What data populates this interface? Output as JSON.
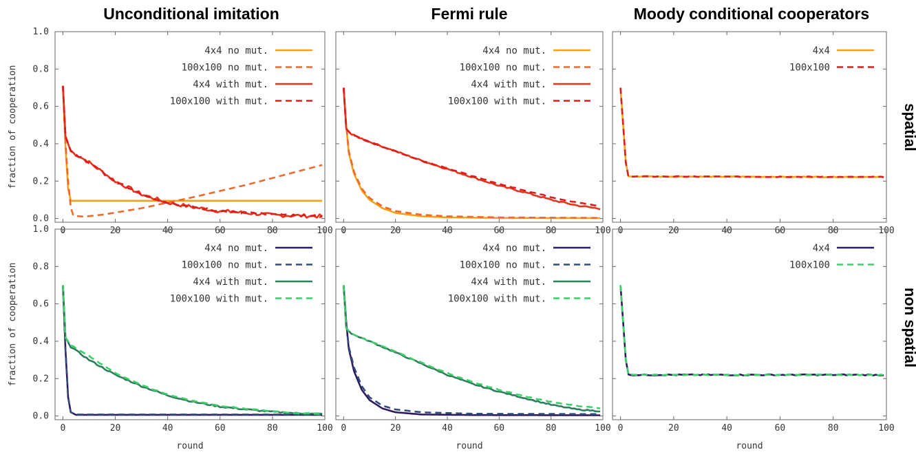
{
  "columns": [
    "Unconditional imitation",
    "Fermi rule",
    "Moody conditional cooperators"
  ],
  "rows": [
    "spatial",
    "non spatial"
  ],
  "chart_data": [
    {
      "type": "line",
      "column": "Unconditional imitation",
      "row": "spatial",
      "xlabel": "",
      "ylabel": "fraction of cooperation",
      "xlim": [
        -3,
        100
      ],
      "ylim": [
        -0.02,
        1.0
      ],
      "xticks": [
        "0",
        "20",
        "40",
        "60",
        "80",
        "100"
      ],
      "yticks": [
        "0.0",
        "0.2",
        "0.4",
        "0.6",
        "0.8",
        "1.0"
      ],
      "legend_position": "top-right",
      "series": [
        {
          "name": "4x4 no mut.",
          "color": "#f5a01a",
          "dash": false,
          "noise": 0,
          "points": [
            [
              0,
              0.71
            ],
            [
              1,
              0.38
            ],
            [
              2,
              0.16
            ],
            [
              3,
              0.095
            ],
            [
              100,
              0.095
            ]
          ]
        },
        {
          "name": "100x100 no mut.",
          "color": "#ee6a2c",
          "dash": true,
          "noise": 0,
          "points": [
            [
              0,
              0.71
            ],
            [
              1,
              0.4
            ],
            [
              2,
              0.2
            ],
            [
              3,
              0.06
            ],
            [
              4,
              0.015
            ],
            [
              8,
              0.01
            ],
            [
              15,
              0.02
            ],
            [
              30,
              0.055
            ],
            [
              50,
              0.115
            ],
            [
              70,
              0.18
            ],
            [
              85,
              0.235
            ],
            [
              100,
              0.29
            ]
          ]
        },
        {
          "name": "4x4 with mut.",
          "color": "#e8341c",
          "dash": false,
          "noise": 0.01,
          "points": [
            [
              0,
              0.71
            ],
            [
              1,
              0.44
            ],
            [
              3,
              0.36
            ],
            [
              10,
              0.3
            ],
            [
              20,
              0.2
            ],
            [
              30,
              0.13
            ],
            [
              40,
              0.085
            ],
            [
              50,
              0.06
            ],
            [
              60,
              0.04
            ],
            [
              70,
              0.03
            ],
            [
              80,
              0.018
            ],
            [
              90,
              0.015
            ],
            [
              100,
              0.012
            ]
          ]
        },
        {
          "name": "100x100 with mut.",
          "color": "#dd1c1c",
          "dash": true,
          "noise": 0.006,
          "points": [
            [
              0,
              0.71
            ],
            [
              1,
              0.44
            ],
            [
              3,
              0.36
            ],
            [
              10,
              0.3
            ],
            [
              20,
              0.2
            ],
            [
              30,
              0.13
            ],
            [
              40,
              0.085
            ],
            [
              50,
              0.06
            ],
            [
              60,
              0.04
            ],
            [
              70,
              0.03
            ],
            [
              80,
              0.02
            ],
            [
              90,
              0.015
            ],
            [
              100,
              0.012
            ]
          ]
        }
      ]
    },
    {
      "type": "line",
      "column": "Fermi rule",
      "row": "spatial",
      "xlabel": "",
      "ylabel": "",
      "xlim": [
        -3,
        100
      ],
      "ylim": [
        -0.02,
        1.0
      ],
      "xticks": [
        "0",
        "20",
        "40",
        "60",
        "80",
        "100"
      ],
      "yticks": [],
      "legend_position": "top-right",
      "series": [
        {
          "name": "4x4 no mut.",
          "color": "#f5a01a",
          "dash": false,
          "noise": 0,
          "points": [
            [
              0,
              0.7
            ],
            [
              1,
              0.5
            ],
            [
              2,
              0.35
            ],
            [
              4,
              0.24
            ],
            [
              7,
              0.15
            ],
            [
              10,
              0.1
            ],
            [
              15,
              0.055
            ],
            [
              20,
              0.03
            ],
            [
              30,
              0.012
            ],
            [
              40,
              0.006
            ],
            [
              60,
              0.003
            ],
            [
              100,
              0.002
            ]
          ]
        },
        {
          "name": "100x100 no mut.",
          "color": "#ee6a2c",
          "dash": true,
          "noise": 0,
          "points": [
            [
              0,
              0.7
            ],
            [
              1,
              0.5
            ],
            [
              2,
              0.36
            ],
            [
              4,
              0.25
            ],
            [
              7,
              0.16
            ],
            [
              10,
              0.11
            ],
            [
              15,
              0.065
            ],
            [
              20,
              0.04
            ],
            [
              30,
              0.02
            ],
            [
              40,
              0.012
            ],
            [
              60,
              0.006
            ],
            [
              100,
              0.003
            ]
          ]
        },
        {
          "name": "4x4 with mut.",
          "color": "#e8341c",
          "dash": false,
          "noise": 0.004,
          "points": [
            [
              0,
              0.7
            ],
            [
              1,
              0.48
            ],
            [
              3,
              0.45
            ],
            [
              10,
              0.41
            ],
            [
              20,
              0.36
            ],
            [
              30,
              0.31
            ],
            [
              40,
              0.265
            ],
            [
              50,
              0.22
            ],
            [
              60,
              0.175
            ],
            [
              70,
              0.14
            ],
            [
              80,
              0.1
            ],
            [
              90,
              0.07
            ],
            [
              100,
              0.05
            ]
          ]
        },
        {
          "name": "100x100 with mut.",
          "color": "#dd1c1c",
          "dash": true,
          "noise": 0.002,
          "points": [
            [
              0,
              0.7
            ],
            [
              1,
              0.48
            ],
            [
              3,
              0.45
            ],
            [
              10,
              0.41
            ],
            [
              20,
              0.36
            ],
            [
              30,
              0.31
            ],
            [
              40,
              0.27
            ],
            [
              50,
              0.225
            ],
            [
              60,
              0.185
            ],
            [
              70,
              0.15
            ],
            [
              80,
              0.115
            ],
            [
              90,
              0.085
            ],
            [
              100,
              0.065
            ]
          ]
        }
      ]
    },
    {
      "type": "line",
      "column": "Moody conditional cooperators",
      "row": "spatial",
      "xlabel": "",
      "ylabel": "",
      "xlim": [
        -3,
        100
      ],
      "ylim": [
        -0.02,
        1.0
      ],
      "xticks": [
        "0",
        "20",
        "40",
        "60",
        "80",
        "100"
      ],
      "yticks": [],
      "legend_position": "top-right",
      "series": [
        {
          "name": "4x4",
          "color": "#f5a01a",
          "dash": false,
          "noise": 0.002,
          "points": [
            [
              0,
              0.7
            ],
            [
              1,
              0.5
            ],
            [
              2,
              0.3
            ],
            [
              3,
              0.225
            ],
            [
              100,
              0.222
            ]
          ]
        },
        {
          "name": "100x100",
          "color": "#dd1c1c",
          "dash": true,
          "noise": 0.002,
          "points": [
            [
              0,
              0.7
            ],
            [
              1,
              0.5
            ],
            [
              2,
              0.3
            ],
            [
              3,
              0.225
            ],
            [
              100,
              0.222
            ]
          ]
        }
      ]
    },
    {
      "type": "line",
      "column": "Unconditional imitation",
      "row": "non spatial",
      "xlabel": "round",
      "ylabel": "fraction of cooperation",
      "xlim": [
        -3,
        100
      ],
      "ylim": [
        -0.02,
        1.0
      ],
      "xticks": [
        "0",
        "20",
        "40",
        "60",
        "80",
        "100"
      ],
      "yticks": [
        "0.0",
        "0.2",
        "0.4",
        "0.6",
        "0.8",
        "1.0"
      ],
      "legend_position": "top-right",
      "series": [
        {
          "name": "4x4 no mut.",
          "color": "#2e1a5e",
          "dash": false,
          "noise": 0,
          "points": [
            [
              0,
              0.7
            ],
            [
              1,
              0.35
            ],
            [
              2,
              0.1
            ],
            [
              3,
              0.02
            ],
            [
              5,
              0.006
            ],
            [
              100,
              0.006
            ]
          ]
        },
        {
          "name": "100x100 no mut.",
          "color": "#334b7a",
          "dash": true,
          "noise": 0,
          "points": [
            [
              0,
              0.7
            ],
            [
              1,
              0.35
            ],
            [
              2,
              0.1
            ],
            [
              3,
              0.02
            ],
            [
              5,
              0.008
            ],
            [
              100,
              0.008
            ]
          ]
        },
        {
          "name": "4x4 with mut.",
          "color": "#2e7d5b",
          "dash": false,
          "noise": 0.004,
          "points": [
            [
              0,
              0.7
            ],
            [
              1,
              0.42
            ],
            [
              3,
              0.37
            ],
            [
              10,
              0.3
            ],
            [
              20,
              0.22
            ],
            [
              30,
              0.16
            ],
            [
              40,
              0.11
            ],
            [
              50,
              0.075
            ],
            [
              60,
              0.05
            ],
            [
              70,
              0.035
            ],
            [
              80,
              0.022
            ],
            [
              90,
              0.014
            ],
            [
              100,
              0.01
            ]
          ]
        },
        {
          "name": "100x100 with mut.",
          "color": "#3ecf6a",
          "dash": true,
          "noise": 0.002,
          "points": [
            [
              0,
              0.7
            ],
            [
              1,
              0.42
            ],
            [
              3,
              0.38
            ],
            [
              10,
              0.32
            ],
            [
              20,
              0.23
            ],
            [
              30,
              0.165
            ],
            [
              40,
              0.115
            ],
            [
              50,
              0.08
            ],
            [
              60,
              0.055
            ],
            [
              70,
              0.038
            ],
            [
              80,
              0.025
            ],
            [
              90,
              0.015
            ],
            [
              100,
              0.01
            ]
          ]
        }
      ]
    },
    {
      "type": "line",
      "column": "Fermi rule",
      "row": "non spatial",
      "xlabel": "round",
      "ylabel": "",
      "xlim": [
        -3,
        100
      ],
      "ylim": [
        -0.02,
        1.0
      ],
      "xticks": [
        "0",
        "20",
        "40",
        "60",
        "80",
        "100"
      ],
      "yticks": [],
      "legend_position": "top-right",
      "series": [
        {
          "name": "4x4 no mut.",
          "color": "#2e1a5e",
          "dash": false,
          "noise": 0,
          "points": [
            [
              0,
              0.7
            ],
            [
              1,
              0.5
            ],
            [
              2,
              0.36
            ],
            [
              4,
              0.24
            ],
            [
              7,
              0.14
            ],
            [
              10,
              0.085
            ],
            [
              15,
              0.04
            ],
            [
              20,
              0.02
            ],
            [
              30,
              0.008
            ],
            [
              50,
              0.005
            ],
            [
              100,
              0.004
            ]
          ]
        },
        {
          "name": "100x100 no mut.",
          "color": "#334b7a",
          "dash": true,
          "noise": 0,
          "points": [
            [
              0,
              0.7
            ],
            [
              1,
              0.5
            ],
            [
              2,
              0.37
            ],
            [
              4,
              0.26
            ],
            [
              7,
              0.16
            ],
            [
              10,
              0.1
            ],
            [
              15,
              0.055
            ],
            [
              20,
              0.035
            ],
            [
              30,
              0.02
            ],
            [
              50,
              0.012
            ],
            [
              100,
              0.01
            ]
          ]
        },
        {
          "name": "4x4 with mut.",
          "color": "#2e7d5b",
          "dash": false,
          "noise": 0.003,
          "points": [
            [
              0,
              0.7
            ],
            [
              1,
              0.47
            ],
            [
              3,
              0.44
            ],
            [
              10,
              0.4
            ],
            [
              20,
              0.34
            ],
            [
              30,
              0.28
            ],
            [
              40,
              0.22
            ],
            [
              50,
              0.17
            ],
            [
              60,
              0.13
            ],
            [
              70,
              0.095
            ],
            [
              80,
              0.06
            ],
            [
              90,
              0.035
            ],
            [
              100,
              0.025
            ]
          ]
        },
        {
          "name": "100x100 with mut.",
          "color": "#3ecf6a",
          "dash": true,
          "noise": 0.002,
          "points": [
            [
              0,
              0.7
            ],
            [
              1,
              0.47
            ],
            [
              3,
              0.44
            ],
            [
              10,
              0.4
            ],
            [
              20,
              0.345
            ],
            [
              30,
              0.285
            ],
            [
              40,
              0.23
            ],
            [
              50,
              0.18
            ],
            [
              60,
              0.14
            ],
            [
              70,
              0.105
            ],
            [
              80,
              0.075
            ],
            [
              90,
              0.055
            ],
            [
              100,
              0.04
            ]
          ]
        }
      ]
    },
    {
      "type": "line",
      "column": "Moody conditional cooperators",
      "row": "non spatial",
      "xlabel": "round",
      "ylabel": "",
      "xlim": [
        -3,
        100
      ],
      "ylim": [
        -0.02,
        1.0
      ],
      "xticks": [
        "0",
        "20",
        "40",
        "60",
        "80",
        "100"
      ],
      "yticks": [],
      "legend_position": "top-right",
      "series": [
        {
          "name": "4x4",
          "color": "#2e1a5e",
          "dash": false,
          "noise": 0.003,
          "points": [
            [
              0,
              0.7
            ],
            [
              1,
              0.5
            ],
            [
              2,
              0.3
            ],
            [
              3,
              0.22
            ],
            [
              100,
              0.22
            ]
          ]
        },
        {
          "name": "100x100",
          "color": "#3ecf6a",
          "dash": true,
          "noise": 0.002,
          "points": [
            [
              0,
              0.7
            ],
            [
              1,
              0.5
            ],
            [
              2,
              0.3
            ],
            [
              3,
              0.22
            ],
            [
              100,
              0.22
            ]
          ]
        }
      ]
    }
  ]
}
